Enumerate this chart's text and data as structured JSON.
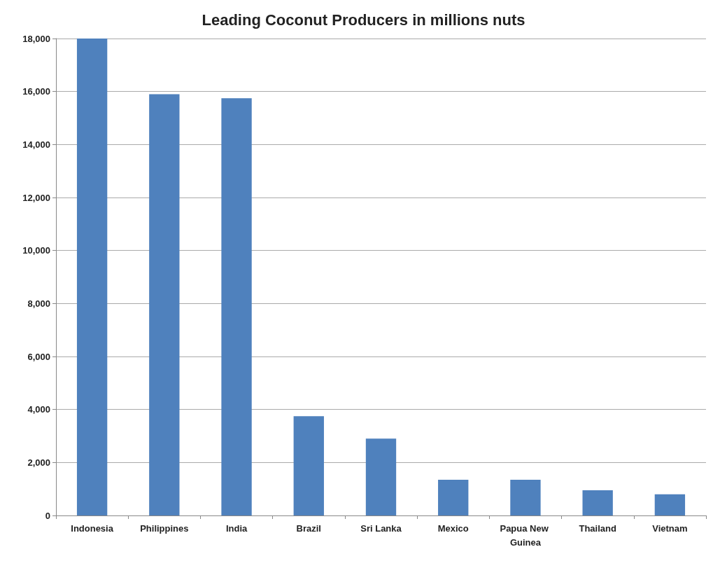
{
  "chart_data": {
    "type": "bar",
    "title": "Leading Coconut Producers in millions nuts",
    "categories": [
      "Indonesia",
      "Philippines",
      "India",
      "Brazil",
      "Sri Lanka",
      "Mexico",
      "Papua New Guinea",
      "Thailand",
      "Vietnam"
    ],
    "values": [
      18000,
      15900,
      15750,
      3750,
      2900,
      1350,
      1350,
      950,
      800
    ],
    "color": "#4f81bd",
    "ylim": [
      0,
      18000
    ],
    "yticks": [
      0,
      {
        "value": 2000,
        "label": "2,000"
      },
      {
        "value": 4000,
        "label": "4,000"
      },
      {
        "value": 6000,
        "label": "6,000"
      },
      {
        "value": 8000,
        "label": "8,000"
      },
      {
        "value": 10000,
        "label": "10,000"
      },
      {
        "value": 12000,
        "label": "12,000"
      },
      {
        "value": 14000,
        "label": "14,000"
      },
      {
        "value": 16000,
        "label": "16,000"
      },
      {
        "value": 18000,
        "label": "18,000"
      }
    ],
    "grid": "y"
  }
}
